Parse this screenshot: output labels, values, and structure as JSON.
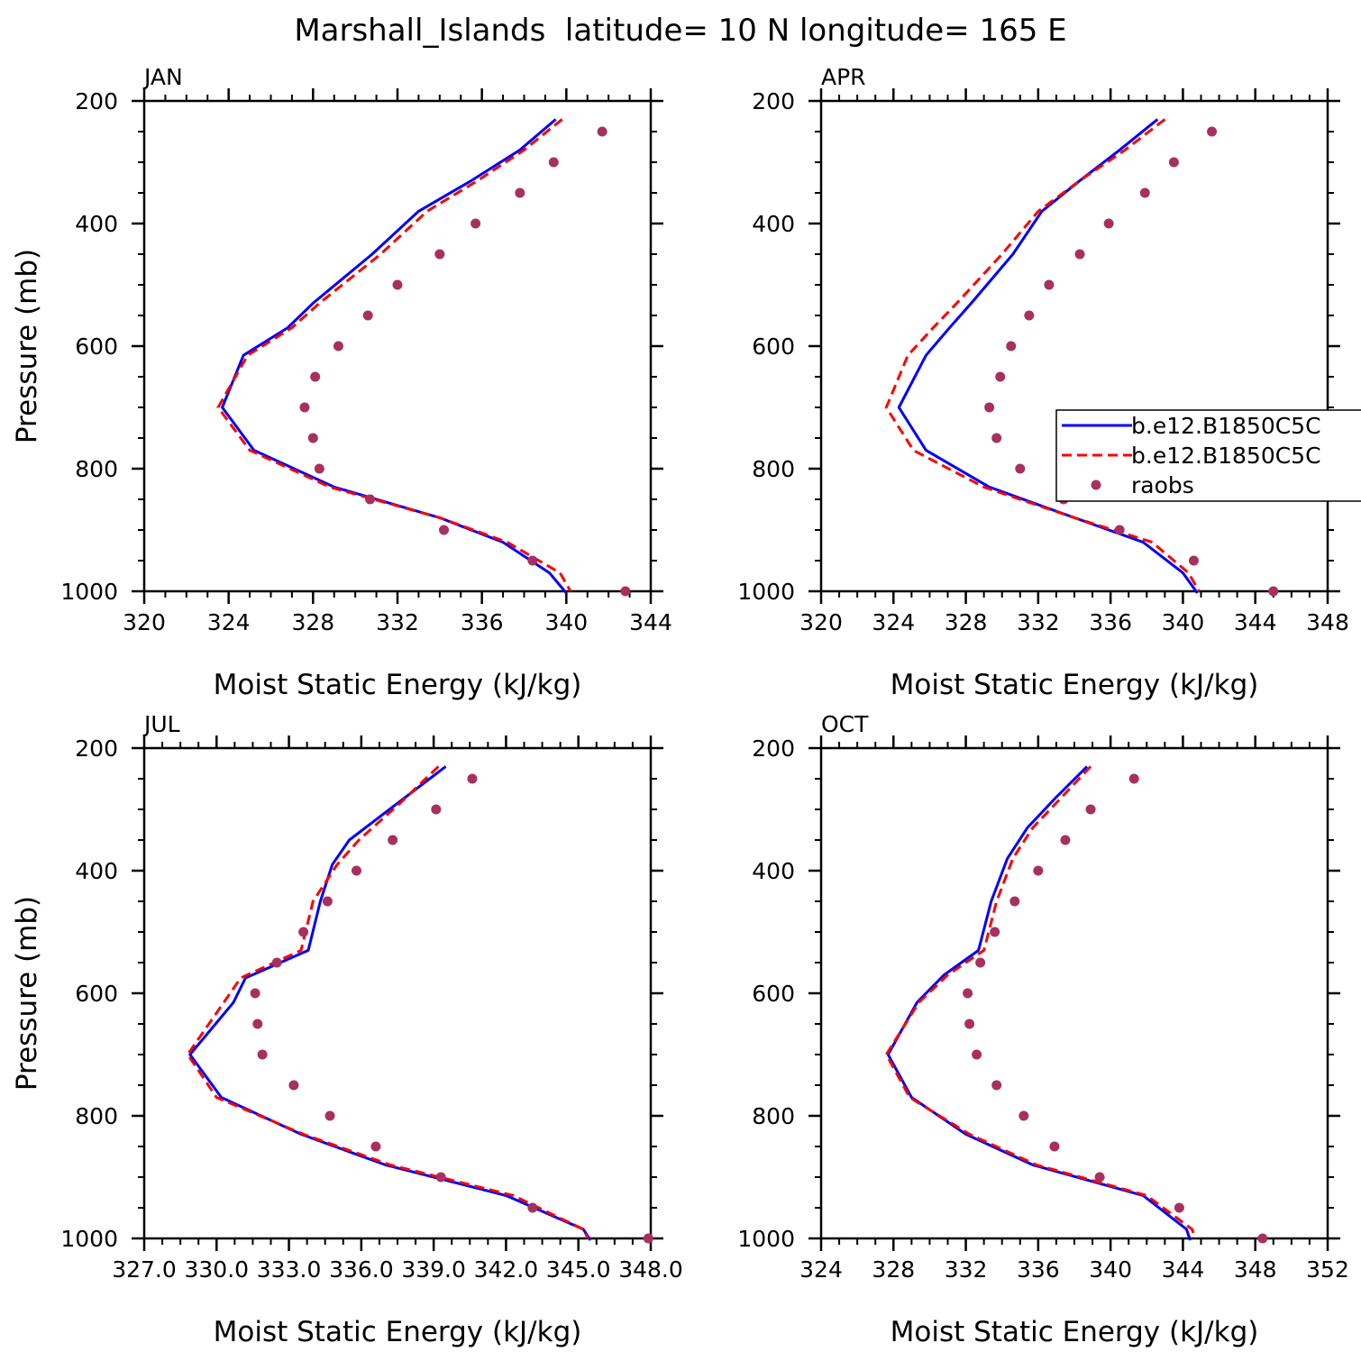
{
  "figure": {
    "title": "Marshall_Islands  latitude= 10 N longitude= 165 E",
    "colors": {
      "model_1": "#0000ff",
      "model_2": "#ff0000",
      "raobs": "#a8305f"
    }
  },
  "legend": {
    "entries": [
      "b.e12.B1850C5C",
      "b.e12.B1850C5C",
      "raobs"
    ],
    "placement": "right of APR panel, partially cut off"
  },
  "chart_data": [
    {
      "type": "line",
      "title": "JAN",
      "xlabel": "Moist Static Energy (kJ/kg)",
      "ylabel": "Pressure (mb)",
      "xlim": [
        320,
        344
      ],
      "ylim": [
        200,
        1000
      ],
      "y_inverted": true,
      "xticks": [
        "320",
        "324",
        "328",
        "332",
        "336",
        "340",
        "344"
      ],
      "yticks": [
        "200",
        "400",
        "600",
        "800",
        "1000"
      ],
      "series": [
        {
          "name": "b.e12.B1850C5C",
          "style": "solid",
          "x": [
            339.5,
            337.8,
            335.5,
            333.0,
            330.8,
            328.0,
            326.8,
            324.7,
            323.7,
            325.2,
            329.0,
            334.0,
            337.0,
            339.2,
            340.0
          ],
          "y": [
            230,
            280,
            330,
            380,
            450,
            530,
            570,
            615,
            700,
            770,
            830,
            880,
            920,
            970,
            1003
          ]
        },
        {
          "name": "b.e12.B1850C5C",
          "style": "dashed",
          "x": [
            339.8,
            338.0,
            335.8,
            333.4,
            331.2,
            328.3,
            327.0,
            324.9,
            323.5,
            325.0,
            328.8,
            334.0,
            337.2,
            339.7,
            340.2
          ],
          "y": [
            230,
            280,
            330,
            380,
            450,
            530,
            570,
            615,
            700,
            770,
            830,
            880,
            920,
            970,
            1000
          ]
        },
        {
          "name": "raobs",
          "style": "markers",
          "x": [
            341.7,
            339.4,
            337.8,
            335.7,
            334.0,
            332.0,
            330.6,
            329.2,
            328.1,
            327.6,
            328.0,
            328.3,
            330.7,
            334.2,
            338.4,
            342.8
          ],
          "y": [
            250,
            300,
            350,
            400,
            450,
            500,
            550,
            600,
            650,
            700,
            750,
            800,
            850,
            900,
            950,
            1000
          ]
        }
      ]
    },
    {
      "type": "line",
      "title": "APR",
      "xlabel": "Moist Static Energy (kJ/kg)",
      "ylabel": "",
      "xlim": [
        320,
        348
      ],
      "ylim": [
        200,
        1000
      ],
      "y_inverted": true,
      "xticks": [
        "320",
        "324",
        "328",
        "332",
        "336",
        "340",
        "344",
        "348"
      ],
      "yticks": [
        "200",
        "400",
        "600",
        "800",
        "1000"
      ],
      "series": [
        {
          "name": "b.e12.B1850C5C",
          "style": "solid",
          "x": [
            338.6,
            336.5,
            334.3,
            332.2,
            330.6,
            328.3,
            327.1,
            325.8,
            324.3,
            325.8,
            329.3,
            334.0,
            337.8,
            340.0,
            340.8
          ],
          "y": [
            230,
            280,
            330,
            380,
            450,
            530,
            570,
            615,
            700,
            770,
            830,
            880,
            920,
            970,
            1003
          ]
        },
        {
          "name": "b.e12.B1850C5C",
          "style": "dashed",
          "x": [
            339.0,
            336.8,
            334.3,
            332.0,
            330.0,
            327.5,
            326.2,
            324.8,
            323.6,
            325.1,
            329.0,
            334.0,
            338.3,
            340.3,
            340.9
          ],
          "y": [
            230,
            280,
            330,
            380,
            450,
            530,
            570,
            615,
            700,
            770,
            830,
            880,
            920,
            970,
            1000
          ]
        },
        {
          "name": "raobs",
          "style": "markers",
          "x": [
            341.6,
            339.5,
            337.9,
            335.9,
            334.3,
            332.6,
            331.5,
            330.5,
            329.9,
            329.3,
            329.7,
            331.0,
            333.4,
            336.5,
            340.6,
            345.0
          ],
          "y": [
            250,
            300,
            350,
            400,
            450,
            500,
            550,
            600,
            650,
            700,
            750,
            800,
            850,
            900,
            950,
            1000
          ]
        }
      ]
    },
    {
      "type": "line",
      "title": "JUL",
      "xlabel": "Moist Static Energy (kJ/kg)",
      "ylabel": "Pressure (mb)",
      "xlim": [
        327.0,
        348.0
      ],
      "ylim": [
        200,
        1000
      ],
      "y_inverted": true,
      "xticks": [
        "327.0",
        "330.0",
        "333.0",
        "336.0",
        "339.0",
        "342.0",
        "345.0",
        "348.0"
      ],
      "yticks": [
        "200",
        "400",
        "600",
        "800",
        "1000"
      ],
      "series": [
        {
          "name": "b.e12.B1850C5C",
          "style": "solid",
          "x": [
            339.5,
            337.5,
            335.5,
            334.8,
            334.3,
            333.8,
            331.2,
            330.7,
            328.9,
            330.2,
            333.5,
            337.0,
            342.0,
            345.2,
            345.5
          ],
          "y": [
            230,
            290,
            350,
            390,
            450,
            530,
            575,
            615,
            700,
            770,
            830,
            880,
            930,
            985,
            1003
          ]
        },
        {
          "name": "b.e12.B1850C5C",
          "style": "dashed",
          "x": [
            339.2,
            337.6,
            335.9,
            335.0,
            334.0,
            333.5,
            331.0,
            330.3,
            328.8,
            330.0,
            333.6,
            337.2,
            342.3,
            345.2,
            345.4
          ],
          "y": [
            230,
            290,
            350,
            390,
            450,
            530,
            575,
            615,
            700,
            770,
            830,
            880,
            930,
            985,
            1000
          ]
        },
        {
          "name": "raobs",
          "style": "markers",
          "x": [
            340.6,
            339.1,
            337.3,
            335.8,
            334.6,
            333.6,
            332.5,
            331.6,
            331.7,
            331.9,
            333.2,
            334.7,
            336.6,
            339.3,
            343.1,
            347.9
          ],
          "y": [
            250,
            300,
            350,
            400,
            450,
            500,
            550,
            600,
            650,
            700,
            750,
            800,
            850,
            900,
            950,
            1000
          ]
        }
      ]
    },
    {
      "type": "line",
      "title": "OCT",
      "xlabel": "Moist Static Energy (kJ/kg)",
      "ylabel": "",
      "xlim": [
        324,
        352
      ],
      "ylim": [
        200,
        1000
      ],
      "y_inverted": true,
      "xticks": [
        "324",
        "328",
        "332",
        "336",
        "340",
        "344",
        "348",
        "352"
      ],
      "yticks": [
        "200",
        "400",
        "600",
        "800",
        "1000"
      ],
      "series": [
        {
          "name": "b.e12.B1850C5C",
          "style": "solid",
          "x": [
            338.7,
            337.0,
            335.4,
            334.3,
            333.4,
            332.7,
            330.8,
            329.3,
            327.7,
            329.0,
            332.0,
            335.7,
            341.8,
            344.2,
            344.4
          ],
          "y": [
            230,
            280,
            330,
            380,
            450,
            530,
            570,
            615,
            700,
            770,
            830,
            880,
            930,
            985,
            1003
          ]
        },
        {
          "name": "b.e12.B1850C5C",
          "style": "dashed",
          "x": [
            338.9,
            337.3,
            335.7,
            334.6,
            333.7,
            333.0,
            331.0,
            329.4,
            327.6,
            328.9,
            332.2,
            335.9,
            342.0,
            344.5,
            344.7
          ],
          "y": [
            230,
            280,
            330,
            380,
            450,
            530,
            570,
            615,
            700,
            770,
            830,
            880,
            930,
            985,
            1000
          ]
        },
        {
          "name": "raobs",
          "style": "markers",
          "x": [
            341.3,
            338.9,
            337.5,
            336.0,
            334.7,
            333.6,
            332.8,
            332.1,
            332.2,
            332.6,
            333.7,
            335.2,
            336.9,
            339.4,
            343.8,
            348.4
          ],
          "y": [
            250,
            300,
            350,
            400,
            450,
            500,
            550,
            600,
            650,
            700,
            750,
            800,
            850,
            900,
            950,
            1000
          ]
        }
      ]
    }
  ]
}
